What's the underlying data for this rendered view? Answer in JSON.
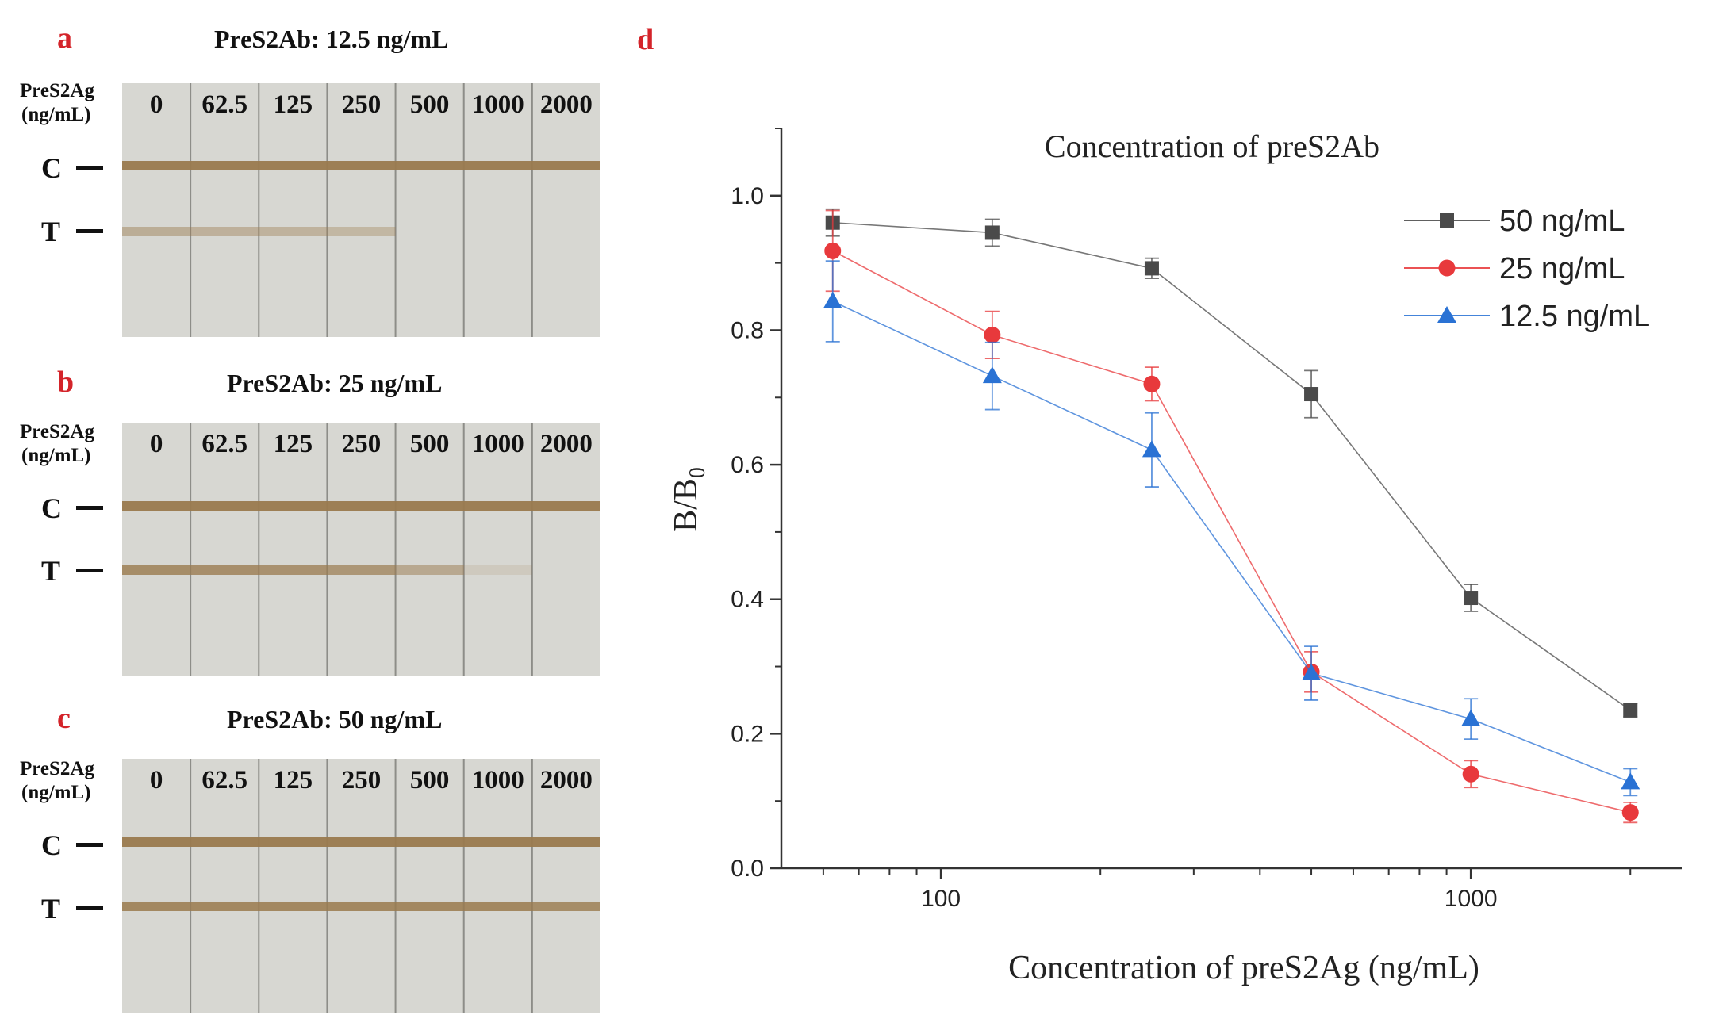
{
  "panels": {
    "a": {
      "letter": "a",
      "title": "PreS2Ab: 12.5 ng/mL",
      "t_intensity": [
        0.45,
        0.42,
        0.4,
        0.35,
        0.0,
        0.0,
        0.0
      ]
    },
    "b": {
      "letter": "b",
      "title": "PreS2Ab: 25 ng/mL",
      "t_intensity": [
        0.8,
        0.78,
        0.75,
        0.7,
        0.5,
        0.15,
        0.0
      ]
    },
    "c": {
      "letter": "c",
      "title": "PreS2Ab: 50 ng/mL",
      "t_intensity": [
        0.85,
        0.85,
        0.85,
        0.85,
        0.85,
        0.85,
        0.8
      ]
    }
  },
  "strip_labels": {
    "row_head_line1": "PreS2Ag",
    "row_head_line2": "(ng/mL)",
    "concentrations": [
      "0",
      "62.5",
      "125",
      "250",
      "500",
      "1000",
      "2000"
    ],
    "c_label": "C",
    "t_label": "T"
  },
  "colors": {
    "panel_letter": "#d4242a",
    "strip_bg": "#d7d7d2",
    "band": "#9a7a4e",
    "series_50": "#4a4a4a",
    "series_25": "#e8393c",
    "series_12_5": "#2a72d4"
  },
  "chart_data": {
    "panel_letter": "d",
    "type": "line",
    "title": "Concentration of preS2Ab",
    "xlabel": "Concentration of preS2Ag (ng/mL)",
    "ylabel": "B/B",
    "ylabel_sub": "0",
    "x_scale": "log",
    "x": [
      62.5,
      125,
      250,
      500,
      1000,
      2000
    ],
    "xlim": [
      50,
      2500
    ],
    "ylim": [
      0,
      1.1
    ],
    "x_ticks": [
      100,
      1000
    ],
    "y_ticks": [
      "0.0",
      "0.2",
      "0.4",
      "0.6",
      "0.8",
      "1.0"
    ],
    "legend_position": "top-right",
    "series": [
      {
        "name": "50 ng/mL",
        "marker": "square",
        "color": "#4a4a4a",
        "values": [
          0.96,
          0.945,
          0.892,
          0.705,
          0.402,
          0.235
        ],
        "errors": [
          0.02,
          0.02,
          0.015,
          0.035,
          0.02,
          0.01
        ]
      },
      {
        "name": "25 ng/mL",
        "marker": "circle",
        "color": "#e8393c",
        "values": [
          0.918,
          0.793,
          0.72,
          0.292,
          0.14,
          0.083
        ],
        "errors": [
          0.06,
          0.035,
          0.025,
          0.03,
          0.02,
          0.015
        ]
      },
      {
        "name": "12.5 ng/mL",
        "marker": "triangle",
        "color": "#2a72d4",
        "values": [
          0.843,
          0.732,
          0.622,
          0.29,
          0.222,
          0.128
        ],
        "errors": [
          0.06,
          0.05,
          0.055,
          0.04,
          0.03,
          0.02
        ]
      }
    ]
  }
}
